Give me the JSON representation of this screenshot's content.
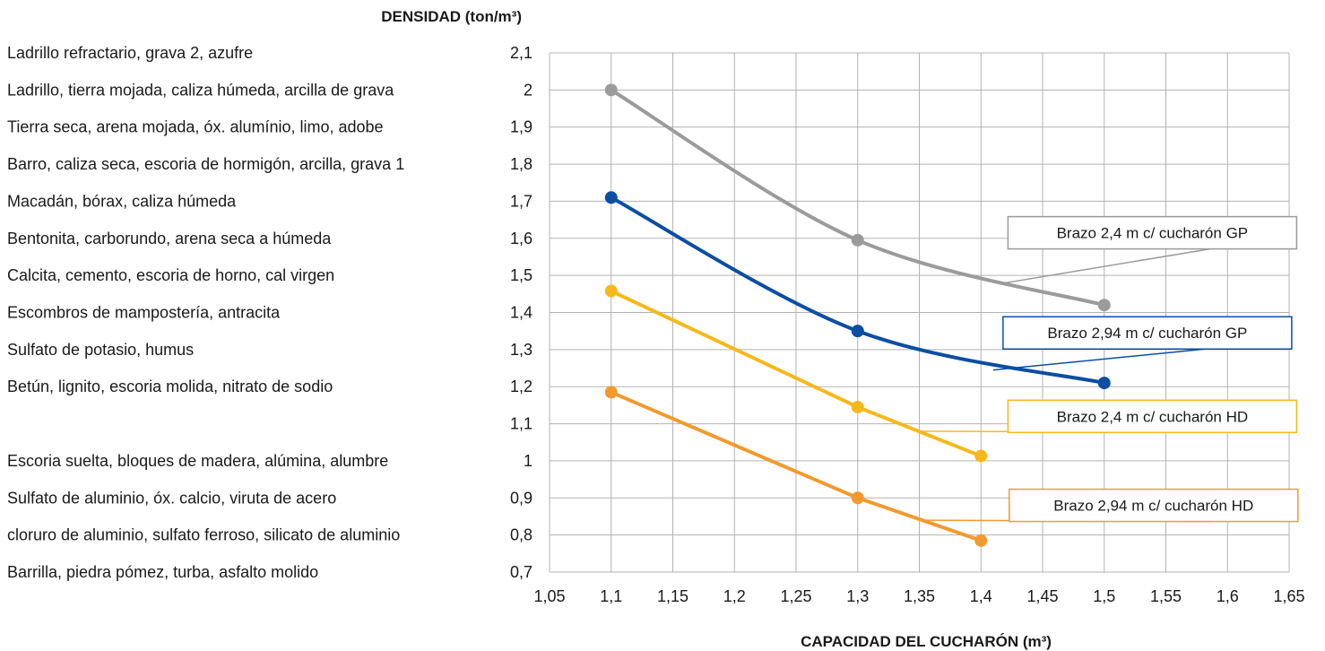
{
  "chart_data": {
    "type": "line",
    "xlabel": "CAPACIDAD DEL CUCHARÓN (m³)",
    "ylabel": "DENSIDAD (ton/m³)",
    "xlim": [
      1.05,
      1.65
    ],
    "ylim": [
      0.7,
      2.1
    ],
    "x_ticks": [
      "1,05",
      "1,1",
      "1,15",
      "1,2",
      "1,25",
      "1,3",
      "1,35",
      "1,4",
      "1,45",
      "1,5",
      "1,55",
      "1,6",
      "1,65"
    ],
    "y_ticks": [
      "2,1",
      "2",
      "1,9",
      "1,8",
      "1,7",
      "1,6",
      "1,5",
      "1,4",
      "1,3",
      "1,2",
      "1,1",
      "1",
      "0,9",
      "0,8",
      "0,7"
    ],
    "grid": true,
    "materials": [
      {
        "label": "Ladrillo refractario, grava 2, azufre",
        "y": 2.1
      },
      {
        "label": "Ladrillo, tierra mojada, caliza húmeda, arcilla de grava",
        "y": 2.0
      },
      {
        "label": "Tierra seca, arena mojada, óx. alumínio, limo, adobe",
        "y": 1.9
      },
      {
        "label": "Barro, caliza seca, escoria de hormigón, arcilla, grava 1",
        "y": 1.8
      },
      {
        "label": "Macadán, bórax, caliza húmeda",
        "y": 1.7
      },
      {
        "label": "Bentonita, carborundo, arena seca a húmeda",
        "y": 1.6
      },
      {
        "label": "Calcita, cemento, escoria de horno, cal virgen",
        "y": 1.5
      },
      {
        "label": "Escombros de mampostería, antracita",
        "y": 1.4
      },
      {
        "label": "Sulfato de potasio, humus",
        "y": 1.3
      },
      {
        "label": "Betún, lignito, escoria molida, nitrato de sodio",
        "y": 1.2
      },
      {
        "label": "Escoria suelta, bloques de madera, alúmina, alumbre",
        "y": 1.0
      },
      {
        "label": "Sulfato de aluminio, óx. calcio, viruta de acero",
        "y": 0.9
      },
      {
        "label": "cloruro de aluminio, sulfato ferroso, silicato de aluminio",
        "y": 0.8
      },
      {
        "label": "Barrilla, piedra pómez, turba, asfalto molido",
        "y": 0.7
      }
    ],
    "series": [
      {
        "name": "Brazo 2,4 m c/ cucharón GP",
        "color": "#9b9b9b",
        "curve": true,
        "points": [
          [
            1.1,
            2.0
          ],
          [
            1.3,
            1.595
          ],
          [
            1.5,
            1.42
          ]
        ],
        "callout_box_center": [
          1.539,
          1.615
        ],
        "callout_anchor": [
          1.42,
          1.48
        ]
      },
      {
        "name": "Brazo 2,94 m c/ cucharón GP",
        "color": "#0b4ea2",
        "curve": true,
        "points": [
          [
            1.1,
            1.71
          ],
          [
            1.3,
            1.35
          ],
          [
            1.5,
            1.21
          ]
        ],
        "callout_box_center": [
          1.535,
          1.345
        ],
        "callout_anchor": [
          1.41,
          1.245
        ]
      },
      {
        "name": "Brazo 2,4 m c/ cucharón HD",
        "color": "#f7b81b",
        "curve": false,
        "points": [
          [
            1.1,
            1.458
          ],
          [
            1.3,
            1.145
          ],
          [
            1.4,
            1.013
          ]
        ],
        "callout_box_center": [
          1.539,
          1.12
        ],
        "callout_anchor": [
          1.35,
          1.08
        ]
      },
      {
        "name": "Brazo 2,94 m c/ cucharón HD",
        "color": "#f29a2e",
        "curve": false,
        "points": [
          [
            1.1,
            1.185
          ],
          [
            1.3,
            0.9
          ],
          [
            1.4,
            0.785
          ]
        ],
        "callout_box_center": [
          1.54,
          0.88
        ],
        "callout_anchor": [
          1.355,
          0.84
        ]
      }
    ]
  }
}
